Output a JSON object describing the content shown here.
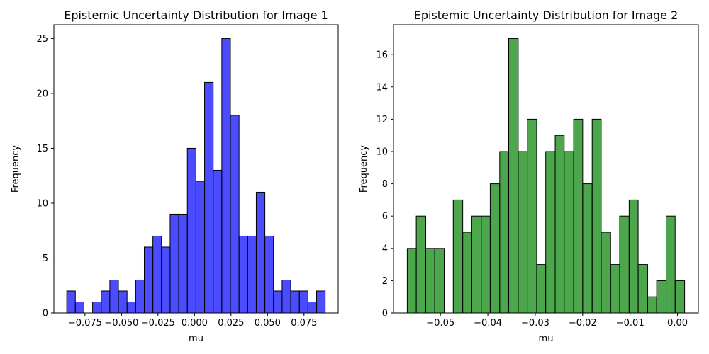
{
  "chart_data": [
    {
      "type": "bar",
      "title": "Epistemic Uncertainty Distribution for Image 1",
      "xlabel": "mu",
      "ylabel": "Frequency",
      "color": "#0000ff",
      "edge_color": "#000000",
      "bin_edges": [
        -0.0875,
        -0.0816,
        -0.0757,
        -0.0698,
        -0.0639,
        -0.058,
        -0.0521,
        -0.0462,
        -0.0403,
        -0.0344,
        -0.0285,
        -0.0226,
        -0.0167,
        -0.0108,
        -0.0049,
        0.001,
        0.0069,
        0.0128,
        0.0187,
        0.0246,
        0.0305,
        0.0364,
        0.0423,
        0.0482,
        0.0541,
        0.06,
        0.0659,
        0.0718,
        0.0777,
        0.0836,
        0.0895
      ],
      "counts": [
        2,
        1,
        0,
        1,
        2,
        3,
        2,
        1,
        3,
        6,
        7,
        6,
        9,
        9,
        15,
        12,
        21,
        13,
        25,
        18,
        7,
        7,
        11,
        7,
        2,
        3,
        2,
        2,
        1,
        2
      ],
      "xlim": [
        -0.0963,
        0.0984
      ],
      "ylim": [
        0,
        26.25
      ],
      "xticks": [
        -0.075,
        -0.05,
        -0.025,
        0.0,
        0.025,
        0.05,
        0.075
      ],
      "xtick_labels": [
        "−0.075",
        "−0.050",
        "−0.025",
        "0.000",
        "0.025",
        "0.050",
        "0.075"
      ],
      "yticks": [
        0,
        5,
        10,
        15,
        20,
        25
      ],
      "ytick_labels": [
        "0",
        "5",
        "10",
        "15",
        "20",
        "25"
      ]
    },
    {
      "type": "bar",
      "title": "Epistemic Uncertainty Distribution for Image 2",
      "xlabel": "mu",
      "ylabel": "Frequency",
      "color": "#008000",
      "edge_color": "#000000",
      "bin_edges": [
        -0.057,
        -0.0551,
        -0.0531,
        -0.0512,
        -0.0492,
        -0.0473,
        -0.0453,
        -0.0434,
        -0.0414,
        -0.0395,
        -0.0375,
        -0.0356,
        -0.0336,
        -0.0317,
        -0.0297,
        -0.0278,
        -0.0258,
        -0.0239,
        -0.0219,
        -0.02,
        -0.018,
        -0.0161,
        -0.0141,
        -0.0122,
        -0.0102,
        -0.0083,
        -0.0063,
        -0.0044,
        -0.0024,
        -0.0005,
        0.0015
      ],
      "counts": [
        4,
        6,
        4,
        4,
        0,
        7,
        5,
        6,
        6,
        8,
        10,
        17,
        10,
        12,
        3,
        10,
        11,
        10,
        12,
        8,
        12,
        5,
        3,
        6,
        7,
        3,
        1,
        2,
        6,
        2
      ],
      "xlim": [
        -0.0599,
        0.0044
      ],
      "ylim": [
        0,
        17.85
      ],
      "xticks": [
        -0.05,
        -0.04,
        -0.03,
        -0.02,
        -0.01,
        0.0
      ],
      "xtick_labels": [
        "−0.05",
        "−0.04",
        "−0.03",
        "−0.02",
        "−0.01",
        "0.00"
      ],
      "yticks": [
        0,
        2,
        4,
        6,
        8,
        10,
        12,
        14,
        16
      ],
      "ytick_labels": [
        "0",
        "2",
        "4",
        "6",
        "8",
        "10",
        "12",
        "14",
        "16"
      ]
    }
  ]
}
